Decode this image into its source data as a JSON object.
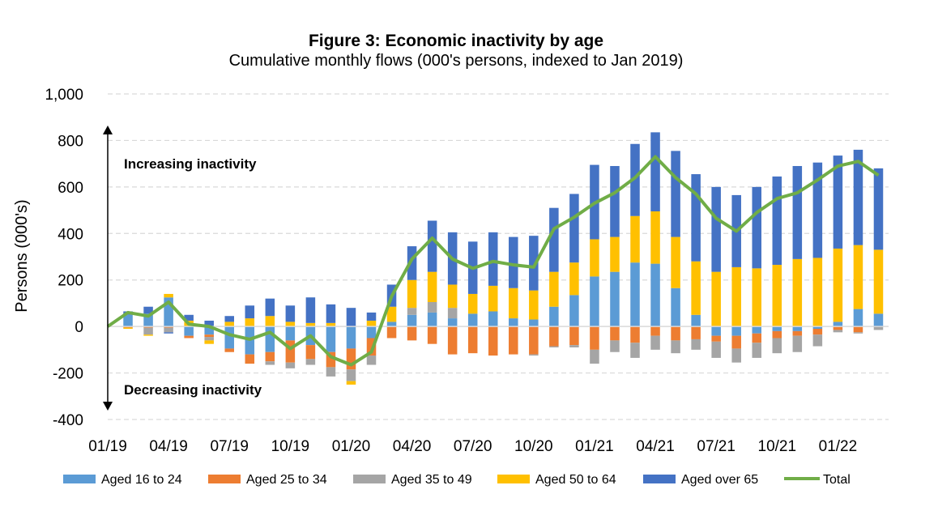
{
  "chart_data": {
    "type": "bar",
    "title": "Figure 3: Economic inactivity by age",
    "subtitle": "Cumulative monthly flows (000's persons, indexed to Jan 2019)",
    "ylabel": "Persons (000's)",
    "xlabel": "",
    "ylim": [
      -400,
      1000
    ],
    "yticks": [
      1000,
      800,
      600,
      400,
      200,
      0,
      -200,
      -400
    ],
    "ytick_labels": [
      "1,000",
      "800",
      "600",
      "400",
      "200",
      "0",
      "-200",
      "-400"
    ],
    "xtick_labels": [
      "01/19",
      "04/19",
      "07/19",
      "10/19",
      "01/20",
      "04/20",
      "07/20",
      "10/20",
      "01/21",
      "04/21",
      "07/21",
      "10/21",
      "01/22"
    ],
    "xtick_indices": [
      0,
      3,
      6,
      9,
      12,
      15,
      18,
      21,
      24,
      27,
      30,
      33,
      36
    ],
    "grid": true,
    "legend_position": "bottom",
    "annotations": {
      "up": "Increasing inactivity",
      "down": "Decreasing inactivity"
    },
    "colors": {
      "aged_16_24": "#5b9bd5",
      "aged_25_34": "#ed7d31",
      "aged_35_49": "#a5a5a5",
      "aged_50_64": "#ffc000",
      "aged_over_65": "#4472c4",
      "total": "#70ad47"
    },
    "x": [
      "01/19",
      "02/19",
      "03/19",
      "04/19",
      "05/19",
      "06/19",
      "07/19",
      "08/19",
      "09/19",
      "10/19",
      "11/19",
      "12/19",
      "01/20",
      "02/20",
      "03/20",
      "04/20",
      "05/20",
      "06/20",
      "07/20",
      "08/20",
      "09/20",
      "10/20",
      "11/20",
      "12/20",
      "01/21",
      "02/21",
      "03/21",
      "04/21",
      "05/21",
      "06/21",
      "07/21",
      "08/21",
      "09/21",
      "10/21",
      "11/21",
      "12/21",
      "01/22",
      "02/22",
      "03/22"
    ],
    "series": [
      {
        "name": "Aged 16 to 24",
        "values": [
          0,
          50,
          55,
          125,
          -40,
          -35,
          -95,
          -120,
          -110,
          -60,
          -80,
          -110,
          -95,
          -50,
          20,
          50,
          60,
          35,
          55,
          65,
          35,
          30,
          85,
          135,
          215,
          235,
          275,
          270,
          165,
          50,
          -40,
          -40,
          -30,
          -20,
          -20,
          -10,
          20,
          75,
          55
        ]
      },
      {
        "name": "Aged 25 to 34",
        "values": [
          0,
          -5,
          -5,
          -5,
          -10,
          -10,
          -15,
          -40,
          -40,
          -95,
          -60,
          -65,
          -90,
          -75,
          -50,
          -60,
          -75,
          -120,
          -115,
          -125,
          -120,
          -120,
          -85,
          -80,
          -100,
          -60,
          -70,
          -40,
          -60,
          -55,
          -25,
          -55,
          -40,
          -30,
          -20,
          -25,
          -15,
          -25,
          0
        ]
      },
      {
        "name": "Aged 35 to 49",
        "values": [
          0,
          0,
          -30,
          -20,
          0,
          -15,
          0,
          0,
          -15,
          -25,
          -25,
          -40,
          -50,
          -40,
          0,
          30,
          45,
          45,
          0,
          0,
          0,
          -5,
          -5,
          -10,
          -60,
          -50,
          -65,
          -60,
          -55,
          -45,
          -70,
          -60,
          -65,
          -65,
          -70,
          -50,
          -10,
          -5,
          -15
        ]
      },
      {
        "name": "Aged 50 to 64",
        "values": [
          0,
          -5,
          -5,
          15,
          25,
          -15,
          20,
          35,
          45,
          20,
          15,
          15,
          -15,
          25,
          65,
          120,
          130,
          100,
          85,
          110,
          130,
          125,
          150,
          140,
          160,
          150,
          200,
          225,
          220,
          230,
          235,
          255,
          250,
          265,
          290,
          295,
          315,
          275,
          275
        ]
      },
      {
        "name": "Aged over 65",
        "values": [
          0,
          15,
          30,
          -5,
          25,
          25,
          25,
          55,
          75,
          70,
          110,
          80,
          80,
          35,
          95,
          145,
          220,
          225,
          225,
          230,
          220,
          235,
          275,
          295,
          320,
          305,
          310,
          340,
          370,
          375,
          365,
          310,
          350,
          380,
          400,
          410,
          400,
          410,
          350
        ]
      },
      {
        "name": "Total",
        "values": [
          0,
          60,
          45,
          105,
          10,
          0,
          -35,
          -55,
          -25,
          -95,
          -40,
          -130,
          -165,
          -110,
          130,
          290,
          380,
          290,
          250,
          280,
          265,
          255,
          420,
          470,
          530,
          575,
          640,
          730,
          640,
          570,
          465,
          410,
          490,
          550,
          575,
          630,
          690,
          710,
          650
        ]
      }
    ]
  }
}
